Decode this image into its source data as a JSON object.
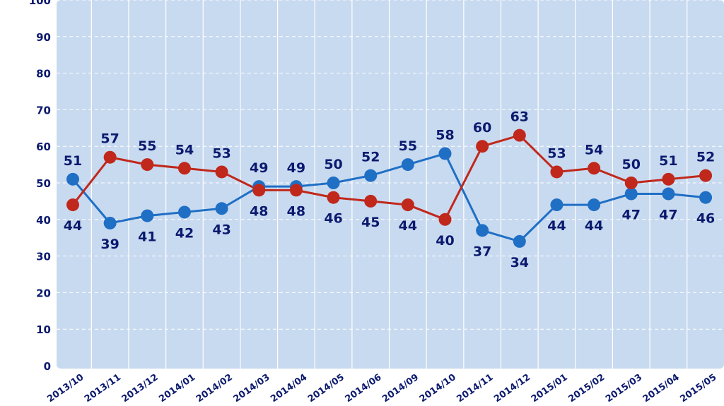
{
  "chart_data": {
    "type": "line",
    "categories": [
      "2013/10",
      "2013/11",
      "2013/12",
      "2014/01",
      "2014/02",
      "2014/03",
      "2014/04",
      "2014/05",
      "2014/06",
      "2014/09",
      "2014/10",
      "2014/11",
      "2014/12",
      "2015/01",
      "2015/02",
      "2015/03",
      "2015/04",
      "2015/05"
    ],
    "series": [
      {
        "color": "#1f6fc5",
        "values": [
          51,
          39,
          41,
          42,
          43,
          49,
          49,
          50,
          52,
          55,
          58,
          37,
          34,
          44,
          44,
          47,
          47,
          46
        ]
      },
      {
        "color": "#c0281b",
        "values": [
          44,
          57,
          55,
          54,
          53,
          48,
          48,
          46,
          45,
          44,
          40,
          60,
          63,
          53,
          54,
          50,
          51,
          52
        ]
      }
    ],
    "yticks": [
      0,
      10,
      20,
      30,
      40,
      50,
      60,
      70,
      80,
      90,
      100
    ],
    "ylim": [
      0,
      100
    ],
    "grid": true,
    "plot_background": "#c8daf0",
    "label_color": "#0b1a6e"
  }
}
